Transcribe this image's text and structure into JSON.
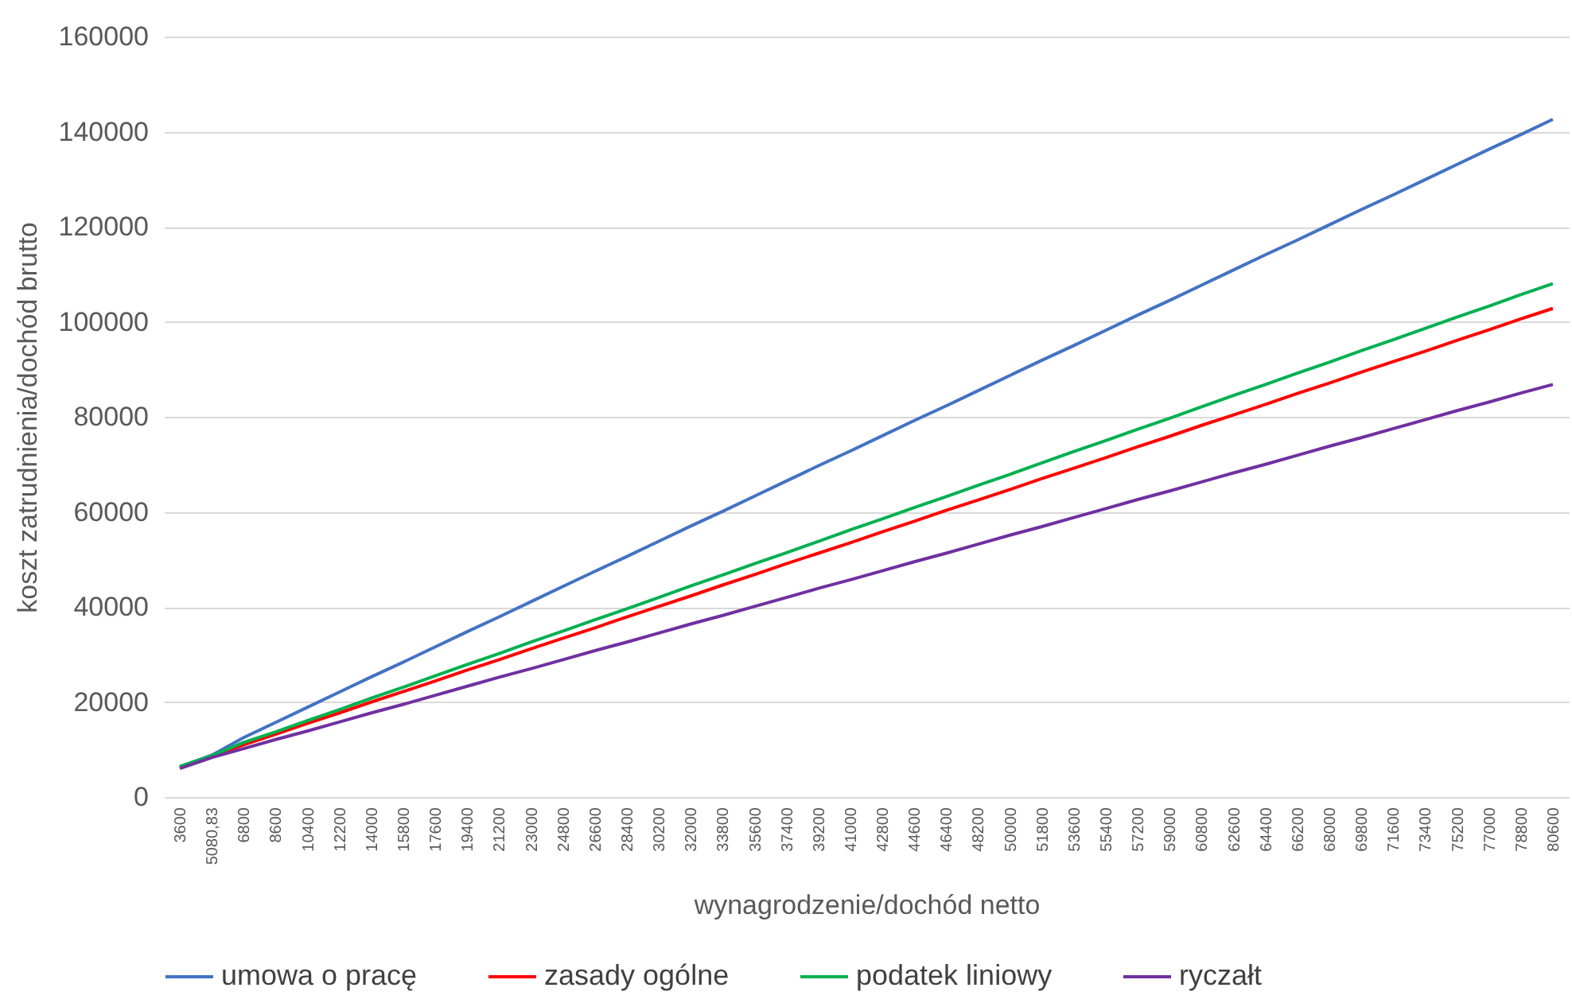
{
  "chart_data": {
    "type": "line",
    "xlabel": "wynagrodzenie/dochód netto",
    "ylabel": "koszt zatrudnienia/dochód brutto",
    "categories": [
      "3600",
      "5080,83",
      "6800",
      "8600",
      "10400",
      "12200",
      "14000",
      "15800",
      "17600",
      "19400",
      "21200",
      "23000",
      "24800",
      "26600",
      "28400",
      "30200",
      "32000",
      "33800",
      "35600",
      "37400",
      "39200",
      "41000",
      "42800",
      "44600",
      "46400",
      "48200",
      "50000",
      "51800",
      "53600",
      "55400",
      "57200",
      "59000",
      "60800",
      "62600",
      "64400",
      "66200",
      "68000",
      "69800",
      "71600",
      "73400",
      "75200",
      "77000",
      "78800",
      "80600"
    ],
    "series": [
      {
        "name": "umowa o pracę",
        "color": "#4472c4",
        "values": [
          6400,
          8800,
          12500,
          15700,
          18900,
          22100,
          25300,
          28400,
          31600,
          34800,
          37900,
          41100,
          44300,
          47500,
          50600,
          53800,
          57000,
          60100,
          63300,
          66500,
          69700,
          72800,
          76000,
          79200,
          82300,
          85500,
          88700,
          91900,
          95000,
          98200,
          101400,
          104500,
          107700,
          110900,
          114100,
          117200,
          120400,
          123600,
          126700,
          129900,
          133100,
          136300,
          139400,
          142600
        ]
      },
      {
        "name": "zasady ogólne",
        "color": "#ff0000",
        "values": [
          6200,
          8500,
          11000,
          13200,
          15500,
          17700,
          20000,
          22200,
          24400,
          26700,
          28900,
          31200,
          33400,
          35600,
          37900,
          40100,
          42300,
          44600,
          46800,
          49100,
          51300,
          53500,
          55800,
          58000,
          60300,
          62500,
          64700,
          67000,
          69200,
          71400,
          73700,
          75900,
          78200,
          80400,
          82600,
          84900,
          87100,
          89400,
          91600,
          93800,
          96100,
          98300,
          100600,
          102800
        ]
      },
      {
        "name": "podatek liniowy",
        "color": "#00b050",
        "values": [
          6400,
          8700,
          11500,
          13700,
          16100,
          18400,
          20800,
          23100,
          25500,
          27900,
          30200,
          32600,
          34900,
          37300,
          39600,
          42000,
          44400,
          46700,
          49100,
          51400,
          53800,
          56200,
          58500,
          60900,
          63200,
          65600,
          67900,
          70300,
          72700,
          75000,
          77400,
          79700,
          82100,
          84500,
          86800,
          89200,
          91500,
          93900,
          96200,
          98600,
          101000,
          103300,
          105700,
          108000
        ]
      },
      {
        "name": "ryczałt",
        "color": "#7030a0",
        "values": [
          6000,
          8300,
          10200,
          12100,
          13900,
          15800,
          17700,
          19500,
          21400,
          23300,
          25200,
          27000,
          28900,
          30800,
          32600,
          34500,
          36400,
          38200,
          40100,
          42000,
          43900,
          45700,
          47600,
          49500,
          51300,
          53200,
          55100,
          56900,
          58800,
          60700,
          62600,
          64400,
          66300,
          68200,
          70000,
          71900,
          73800,
          75600,
          77500,
          79400,
          81300,
          83100,
          85000,
          86800
        ]
      }
    ],
    "ylim": [
      0,
      160000
    ],
    "yticks": [
      0,
      20000,
      40000,
      60000,
      80000,
      100000,
      120000,
      140000,
      160000
    ],
    "grid": "y",
    "legend": "bottom",
    "marker": "none",
    "line_style": "solid"
  }
}
